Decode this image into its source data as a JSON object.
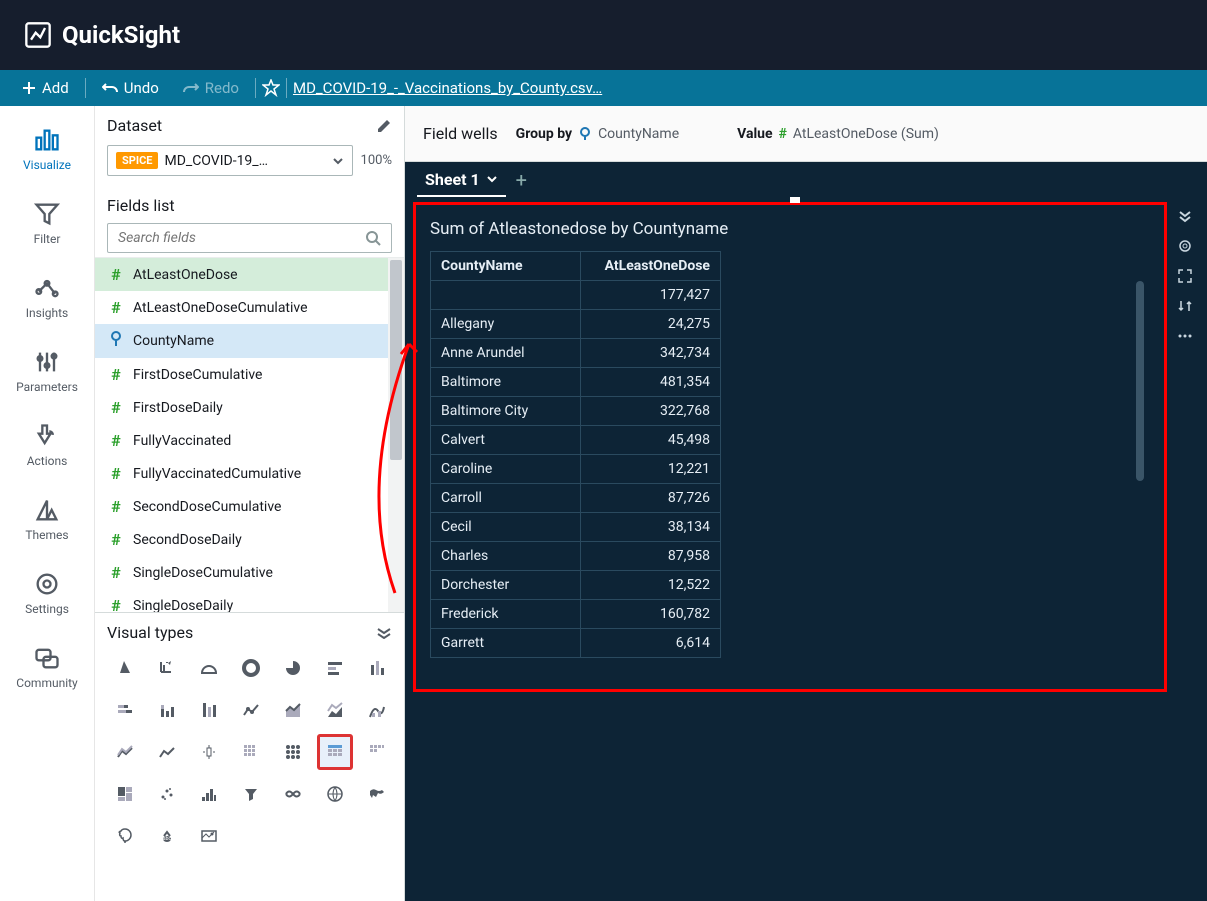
{
  "app": {
    "name": "QuickSight"
  },
  "toolbar": {
    "add": "Add",
    "undo": "Undo",
    "redo": "Redo",
    "filename": "MD_COVID-19_-_Vaccinations_by_County.csv…"
  },
  "leftnav": {
    "items": [
      {
        "key": "visualize",
        "label": "Visualize"
      },
      {
        "key": "filter",
        "label": "Filter"
      },
      {
        "key": "insights",
        "label": "Insights"
      },
      {
        "key": "parameters",
        "label": "Parameters"
      },
      {
        "key": "actions",
        "label": "Actions"
      },
      {
        "key": "themes",
        "label": "Themes"
      },
      {
        "key": "settings",
        "label": "Settings"
      },
      {
        "key": "community",
        "label": "Community"
      }
    ]
  },
  "dataset": {
    "section": "Dataset",
    "spice": "SPICE",
    "name": "MD_COVID-19_…",
    "pct": "100%"
  },
  "fields": {
    "section": "Fields list",
    "search_placeholder": "Search fields",
    "items": [
      {
        "type": "num",
        "label": "AtLeastOneDose",
        "sel": "green"
      },
      {
        "type": "num",
        "label": "AtLeastOneDoseCumulative"
      },
      {
        "type": "geo",
        "label": "CountyName",
        "sel": "blue"
      },
      {
        "type": "num",
        "label": "FirstDoseCumulative"
      },
      {
        "type": "num",
        "label": "FirstDoseDaily"
      },
      {
        "type": "num",
        "label": "FullyVaccinated"
      },
      {
        "type": "num",
        "label": "FullyVaccinatedCumulative"
      },
      {
        "type": "num",
        "label": "SecondDoseCumulative"
      },
      {
        "type": "num",
        "label": "SecondDoseDaily"
      },
      {
        "type": "num",
        "label": "SingleDoseCumulative"
      },
      {
        "type": "num",
        "label": "SingleDoseDaily"
      }
    ]
  },
  "visual_types": {
    "section": "Visual types",
    "selected_index": 19
  },
  "fieldwells": {
    "label": "Field wells",
    "group_by_label": "Group by",
    "group_by_value": "CountyName",
    "value_label": "Value",
    "value_value": "AtLeastOneDose (Sum)"
  },
  "sheets": {
    "active": "Sheet 1"
  },
  "viz": {
    "title": "Sum of Atleastonedose by Countyname",
    "col1": "CountyName",
    "col2": "AtLeastOneDose",
    "rows": [
      {
        "c": "",
        "v": "177,427"
      },
      {
        "c": "Allegany",
        "v": "24,275"
      },
      {
        "c": "Anne Arundel",
        "v": "342,734"
      },
      {
        "c": "Baltimore",
        "v": "481,354"
      },
      {
        "c": "Baltimore City",
        "v": "322,768"
      },
      {
        "c": "Calvert",
        "v": "45,498"
      },
      {
        "c": "Caroline",
        "v": "12,221"
      },
      {
        "c": "Carroll",
        "v": "87,726"
      },
      {
        "c": "Cecil",
        "v": "38,134"
      },
      {
        "c": "Charles",
        "v": "87,958"
      },
      {
        "c": "Dorchester",
        "v": "12,522"
      },
      {
        "c": "Frederick",
        "v": "160,782"
      },
      {
        "c": "Garrett",
        "v": "6,614"
      }
    ]
  },
  "colors": {
    "topbar": "#161e2d",
    "toolbar": "#077398",
    "canvas": "#0d2436",
    "spice": "#ff9900",
    "selection": "#ff0000",
    "active": "#0073bb"
  }
}
